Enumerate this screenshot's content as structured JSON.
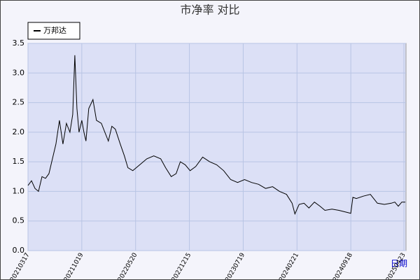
{
  "chart_data": {
    "type": "line",
    "title": "市净率  对比",
    "x_label": "日期",
    "x": [
      0,
      10,
      20,
      30,
      40,
      50,
      60,
      70,
      80,
      90,
      100,
      110,
      120,
      128,
      134,
      140,
      146,
      154,
      160,
      166,
      174,
      186,
      196,
      210,
      220,
      230,
      240,
      250,
      264,
      276,
      286,
      300,
      320,
      340,
      360,
      380,
      394,
      410,
      424,
      436,
      450,
      464,
      480,
      500,
      520,
      540,
      560,
      580,
      600,
      620,
      640,
      660,
      680,
      700,
      720,
      740,
      756,
      764,
      776,
      790,
      804,
      820,
      836,
      850,
      870,
      890,
      910,
      924,
      930,
      940,
      960,
      980,
      1000,
      1020,
      1040,
      1050,
      1060,
      1070,
      1080
    ],
    "series": [
      {
        "name": "万邦达",
        "color": "#000000",
        "values": [
          1.1,
          1.18,
          1.05,
          1.0,
          1.25,
          1.22,
          1.3,
          1.55,
          1.8,
          2.2,
          1.8,
          2.15,
          2.0,
          2.3,
          3.3,
          2.4,
          2.0,
          2.2,
          2.0,
          1.85,
          2.4,
          2.55,
          2.2,
          2.15,
          2.0,
          1.85,
          2.1,
          2.05,
          1.8,
          1.6,
          1.4,
          1.35,
          1.45,
          1.55,
          1.6,
          1.55,
          1.4,
          1.25,
          1.3,
          1.5,
          1.45,
          1.35,
          1.42,
          1.58,
          1.5,
          1.45,
          1.35,
          1.2,
          1.15,
          1.2,
          1.15,
          1.12,
          1.05,
          1.08,
          1.0,
          0.95,
          0.8,
          0.62,
          0.78,
          0.8,
          0.72,
          0.82,
          0.75,
          0.68,
          0.7,
          0.68,
          0.65,
          0.63,
          0.9,
          0.88,
          0.92,
          0.95,
          0.8,
          0.78,
          0.8,
          0.82,
          0.75,
          0.82,
          0.82
        ]
      }
    ],
    "xlim": [
      0,
      1082
    ],
    "xticks": [
      {
        "value": 0,
        "label": "20210317"
      },
      {
        "value": 154,
        "label": "20211019"
      },
      {
        "value": 308,
        "label": "20220520"
      },
      {
        "value": 462,
        "label": "20221215"
      },
      {
        "value": 616,
        "label": "20230719"
      },
      {
        "value": 770,
        "label": "20240221"
      },
      {
        "value": 924,
        "label": "20240918"
      },
      {
        "value": 1076,
        "label": "20250423"
      }
    ],
    "ylim": [
      0,
      3.5
    ],
    "yticks": [
      {
        "value": 0,
        "label": "0.0"
      },
      {
        "value": 0.5,
        "label": "0.5"
      },
      {
        "value": 1,
        "label": "1.0"
      },
      {
        "value": 1.5,
        "label": "1.5"
      },
      {
        "value": 2,
        "label": "2.0"
      },
      {
        "value": 2.5,
        "label": "2.5"
      },
      {
        "value": 3,
        "label": "3.0"
      },
      {
        "value": 3.5,
        "label": "3.5"
      }
    ],
    "grid": true
  }
}
